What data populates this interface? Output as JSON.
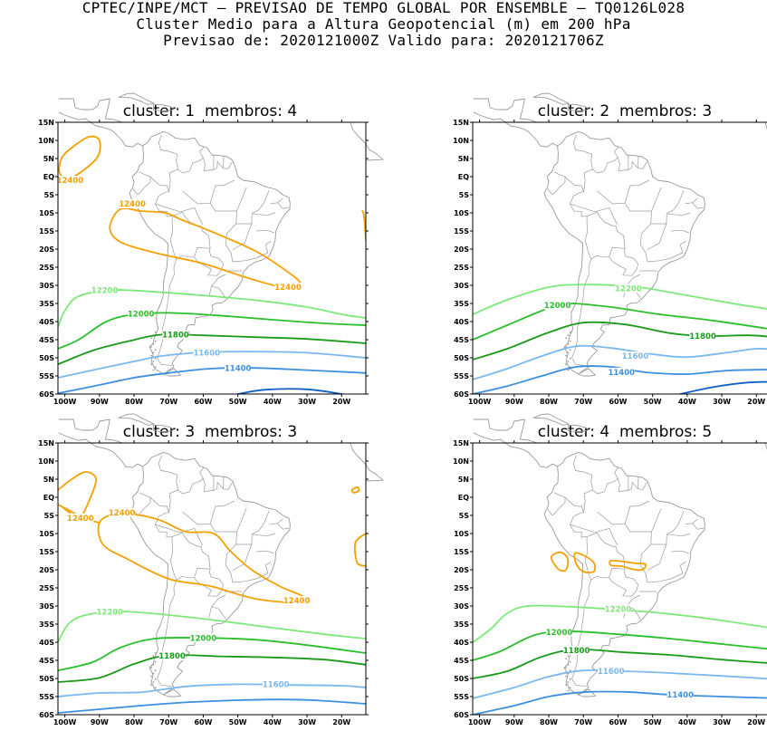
{
  "header": {
    "line1": "CPTEC/INPE/MCT – PREVISAO DE TEMPO GLOBAL POR ENSEMBLE – TQ0126L028",
    "line2": "Cluster Medio para a Altura Geopotencial (m) em 200 hPa",
    "line3": "Previsao de: 2020121000Z    Valido para: 2020121706Z"
  },
  "axis": {
    "lat_labels": [
      "15N",
      "10N",
      "5N",
      "EQ",
      "5S",
      "10S",
      "15S",
      "20S",
      "25S",
      "30S",
      "35S",
      "40S",
      "45S",
      "50S",
      "55S",
      "60S"
    ],
    "lon_labels": [
      "100W",
      "90W",
      "80W",
      "70W",
      "60W",
      "50W",
      "40W",
      "30W",
      "20W"
    ]
  },
  "colors": {
    "c12400": "#f5a000",
    "c12200": "#7ee87a",
    "c12000": "#2bbf2b",
    "c11800": "#1a9a1a",
    "c11600": "#7ab8f0",
    "c11400": "#3d8fe0",
    "c11200": "#1060c8",
    "map": "#9a9a9a"
  },
  "panels": [
    {
      "title": "cluster: 1  membros: 4",
      "labels": {
        "c12400a": "12400",
        "c12400b": "12400",
        "c12400c": "12400",
        "c12200": "12200",
        "c12000": "12000",
        "c11800": "11800",
        "c11600": "11600",
        "c11400": "11400"
      }
    },
    {
      "title": "cluster: 2  membros: 3",
      "labels": {
        "c12200": "12200",
        "c12000": "12000",
        "c11800": "11800",
        "c11600": "11600",
        "c11400": "11400"
      }
    },
    {
      "title": "cluster: 3  membros: 3",
      "labels": {
        "c12400a": "12400",
        "c12400b": "12400",
        "c12400c": "12400",
        "c12200": "12200",
        "c12000": "12000",
        "c11800": "11800",
        "c11600": "11600"
      }
    },
    {
      "title": "cluster: 4  membros: 5",
      "labels": {
        "c12200": "12200",
        "c12000": "12000",
        "c11800": "11800",
        "c11600": "11600",
        "c11400": "11400"
      }
    }
  ]
}
